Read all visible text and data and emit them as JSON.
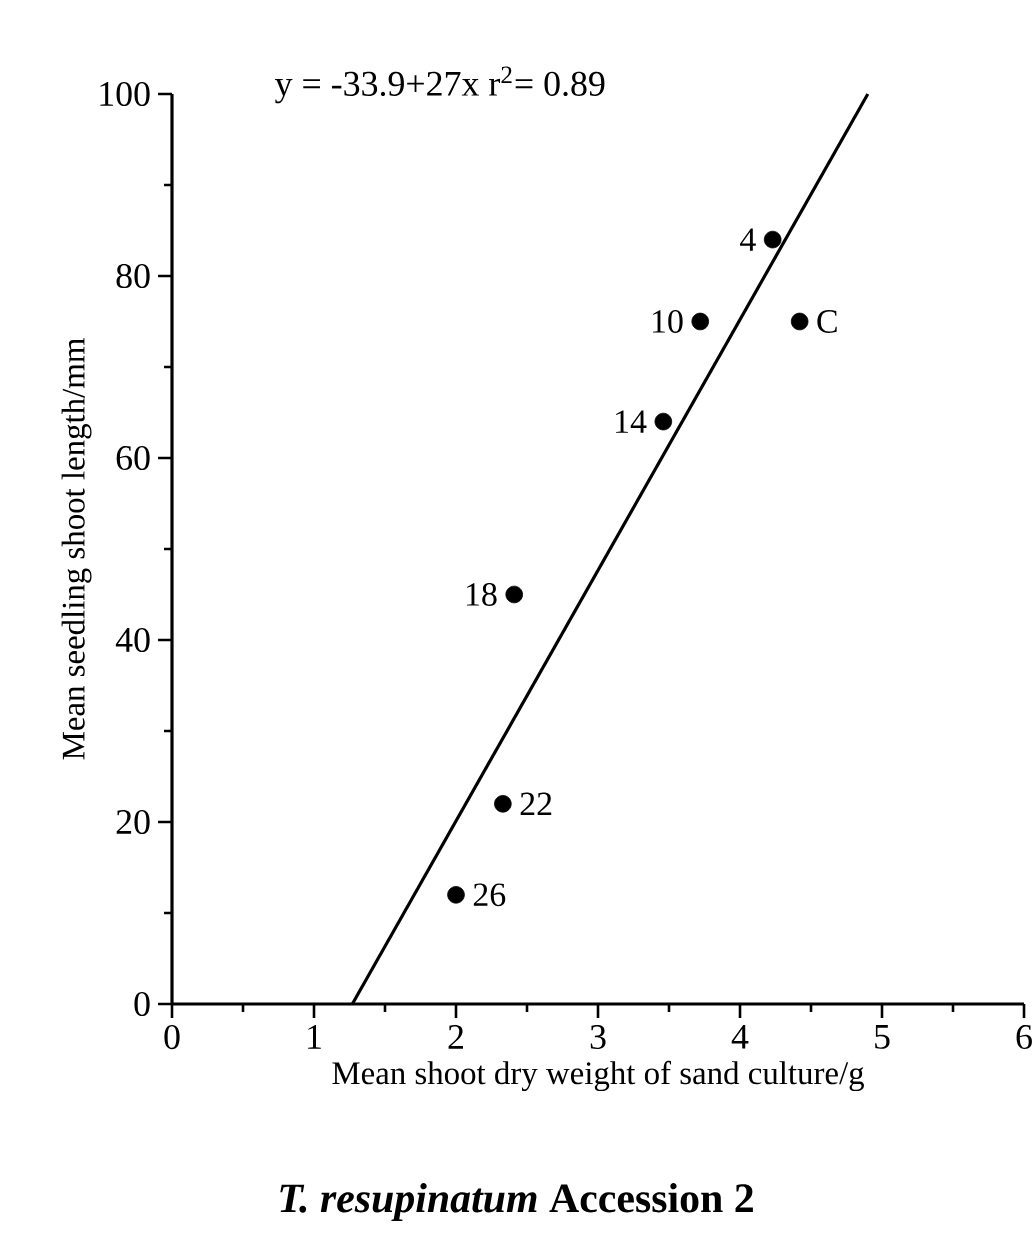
{
  "chart_data": {
    "type": "scatter",
    "title": "*T. resupinatum* Accession 2",
    "xlabel": "Mean shoot dry weight of sand culture/g",
    "ylabel": "Mean seedling shoot length/mm",
    "xlim": [
      0,
      6
    ],
    "ylim": [
      0,
      100
    ],
    "xticks": [
      0,
      1,
      2,
      3,
      4,
      5,
      6
    ],
    "yticks": [
      0,
      20,
      40,
      60,
      80,
      100
    ],
    "marker": "circle",
    "series": [
      {
        "color": "#000000",
        "x": [
          4.23,
          3.72,
          4.42,
          3.46,
          2.41,
          2.33,
          2.0
        ],
        "values": [
          84,
          75,
          75,
          64,
          45,
          22,
          12
        ]
      },
      {
        "type": "line",
        "marker": "none",
        "color": "#000000",
        "x": [
          1.27,
          4.9
        ],
        "values": [
          0,
          100
        ]
      }
    ],
    "annotations": [
      "y = -33.9+27x    r$^{2}$= 0.89",
      {
        "text": "4",
        "x": 4.23,
        "y": 84
      },
      {
        "text": "10",
        "x": 3.72,
        "y": 75
      },
      {
        "text": "C",
        "x": 4.42,
        "y": 75
      },
      {
        "text": "14",
        "x": 3.46,
        "y": 64
      },
      {
        "text": "18",
        "x": 2.41,
        "y": 45
      },
      {
        "text": "22",
        "x": 2.33,
        "y": 22
      },
      {
        "text": "26",
        "x": 2.0,
        "y": 12
      }
    ]
  }
}
